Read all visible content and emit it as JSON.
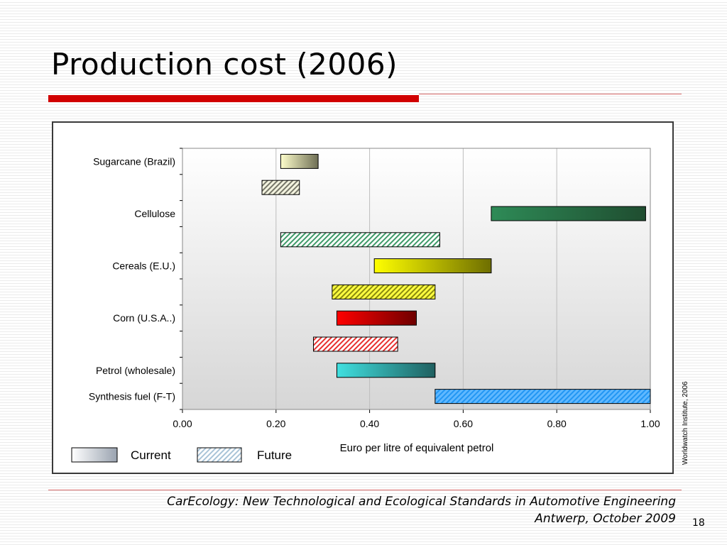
{
  "slide": {
    "title": "Production cost (2006)",
    "footer_line1": "CarEcology:  New Technological and Ecological Standards in Automotive Engineering",
    "footer_line2": "Antwerp,  October 2009",
    "page_number": "18",
    "source_note": "Worldwatch Institute, 2006"
  },
  "colors": {
    "title_rule": "#d10000",
    "sugarcane": [
      "#ffffcc",
      "#6f6f55"
    ],
    "cellulose": [
      "#2e8b57",
      "#1f4d30"
    ],
    "cereals": [
      "#ffff00",
      "#6e6e00"
    ],
    "corn": [
      "#ff0000",
      "#6e0000"
    ],
    "petrol": [
      "#40e0e0",
      "#206060"
    ],
    "synthesis": "#2196f3",
    "legend_current": [
      "#ffffff",
      "#9aa3b0"
    ],
    "legend_future": "#a9c4d8"
  },
  "chart_data": {
    "type": "bar",
    "orientation": "horizontal-range",
    "xlabel": "Euro per litre of equivalent petrol",
    "xlim": [
      0,
      1
    ],
    "xticks": [
      "0.00",
      "0.20",
      "0.40",
      "0.60",
      "0.80",
      "1.00"
    ],
    "grid": true,
    "legend_position": "bottom-left",
    "legend": [
      {
        "label": "Current",
        "style": "gradient"
      },
      {
        "label": "Future",
        "style": "hatched"
      }
    ],
    "category_labels": [
      "Sugarcane (Brazil)",
      "Cellulose",
      "Cereals (E.U.)",
      "Corn (U.S.A..)",
      "Petrol (wholesale)",
      "Synthesis fuel (F-T)"
    ],
    "bars": [
      {
        "category": "Sugarcane (Brazil)",
        "kind": "current",
        "start": 0.21,
        "end": 0.29,
        "color": "sugarcane"
      },
      {
        "category": "Sugarcane (Brazil)",
        "kind": "future",
        "start": 0.17,
        "end": 0.25,
        "color": "sugarcane"
      },
      {
        "category": "Cellulose",
        "kind": "current",
        "start": 0.66,
        "end": 0.99,
        "color": "cellulose"
      },
      {
        "category": "Cellulose",
        "kind": "future",
        "start": 0.21,
        "end": 0.55,
        "color": "cellulose"
      },
      {
        "category": "Cereals (E.U.)",
        "kind": "current",
        "start": 0.41,
        "end": 0.66,
        "color": "cereals"
      },
      {
        "category": "Cereals (E.U.)",
        "kind": "future",
        "start": 0.32,
        "end": 0.54,
        "color": "cereals"
      },
      {
        "category": "Corn (U.S.A..)",
        "kind": "current",
        "start": 0.33,
        "end": 0.5,
        "color": "corn"
      },
      {
        "category": "Corn (U.S.A..)",
        "kind": "future",
        "start": 0.28,
        "end": 0.46,
        "color": "corn"
      },
      {
        "category": "Petrol (wholesale)",
        "kind": "current",
        "start": 0.33,
        "end": 0.54,
        "color": "petrol"
      },
      {
        "category": "Synthesis fuel (F-T)",
        "kind": "future",
        "start": 0.54,
        "end": 1.0,
        "color": "synthesis"
      }
    ]
  }
}
